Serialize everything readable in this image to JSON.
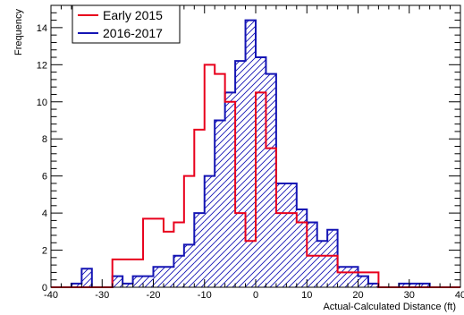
{
  "chart_data": {
    "type": "bar",
    "subtype": "step-histogram",
    "xlabel": "Actual-Calculated Distance (ft)",
    "ylabel": "Frequency",
    "xlim": [
      -40,
      40
    ],
    "ylim": [
      0,
      15.2
    ],
    "x_ticks": [
      -40,
      -30,
      -20,
      -10,
      0,
      10,
      20,
      30,
      40
    ],
    "y_ticks": [
      0,
      2,
      4,
      6,
      8,
      10,
      12,
      14
    ],
    "bin_width": 2,
    "grid": false,
    "legend": {
      "position": "top-left"
    },
    "series": [
      {
        "name": "Early 2015",
        "color": "#e8001c",
        "style": "step-outline",
        "x_left": [
          -40,
          -38,
          -36,
          -34,
          -32,
          -30,
          -28,
          -26,
          -24,
          -22,
          -20,
          -18,
          -16,
          -14,
          -12,
          -10,
          -8,
          -6,
          -4,
          -2,
          0,
          2,
          4,
          6,
          8,
          10,
          12,
          14,
          16,
          18,
          20,
          22,
          24,
          26,
          28,
          30,
          32,
          34,
          36,
          38
        ],
        "values": [
          0,
          0,
          0,
          0,
          0,
          0,
          1.5,
          1.5,
          1.5,
          3.7,
          3.7,
          3,
          3.5,
          6,
          8.5,
          12,
          11.5,
          10,
          4,
          2.5,
          10.5,
          7.5,
          4,
          4,
          3.5,
          1.7,
          1.7,
          1.7,
          0.8,
          0.8,
          0.8,
          0.8,
          0,
          0,
          0,
          0,
          0,
          0,
          0,
          0
        ]
      },
      {
        "name": "2016-2017",
        "color": "#1414b4",
        "style": "hatched",
        "x_left": [
          -40,
          -38,
          -36,
          -34,
          -32,
          -30,
          -28,
          -26,
          -24,
          -22,
          -20,
          -18,
          -16,
          -14,
          -12,
          -10,
          -8,
          -6,
          -4,
          -2,
          0,
          2,
          4,
          6,
          8,
          10,
          12,
          14,
          16,
          18,
          20,
          22,
          24,
          26,
          28,
          30,
          32,
          34,
          36,
          38
        ],
        "values": [
          0,
          0,
          0.2,
          1,
          0,
          0,
          0.6,
          0.2,
          0.6,
          0.6,
          1.1,
          1.1,
          1.7,
          2.3,
          4,
          6,
          9,
          10.5,
          12.2,
          14.4,
          12.4,
          11.5,
          5.6,
          5.6,
          4.2,
          3.5,
          2.5,
          3.1,
          1.1,
          1.1,
          0.6,
          0.2,
          0,
          0,
          0.2,
          0.2,
          0.2,
          0,
          0,
          0
        ]
      }
    ]
  }
}
